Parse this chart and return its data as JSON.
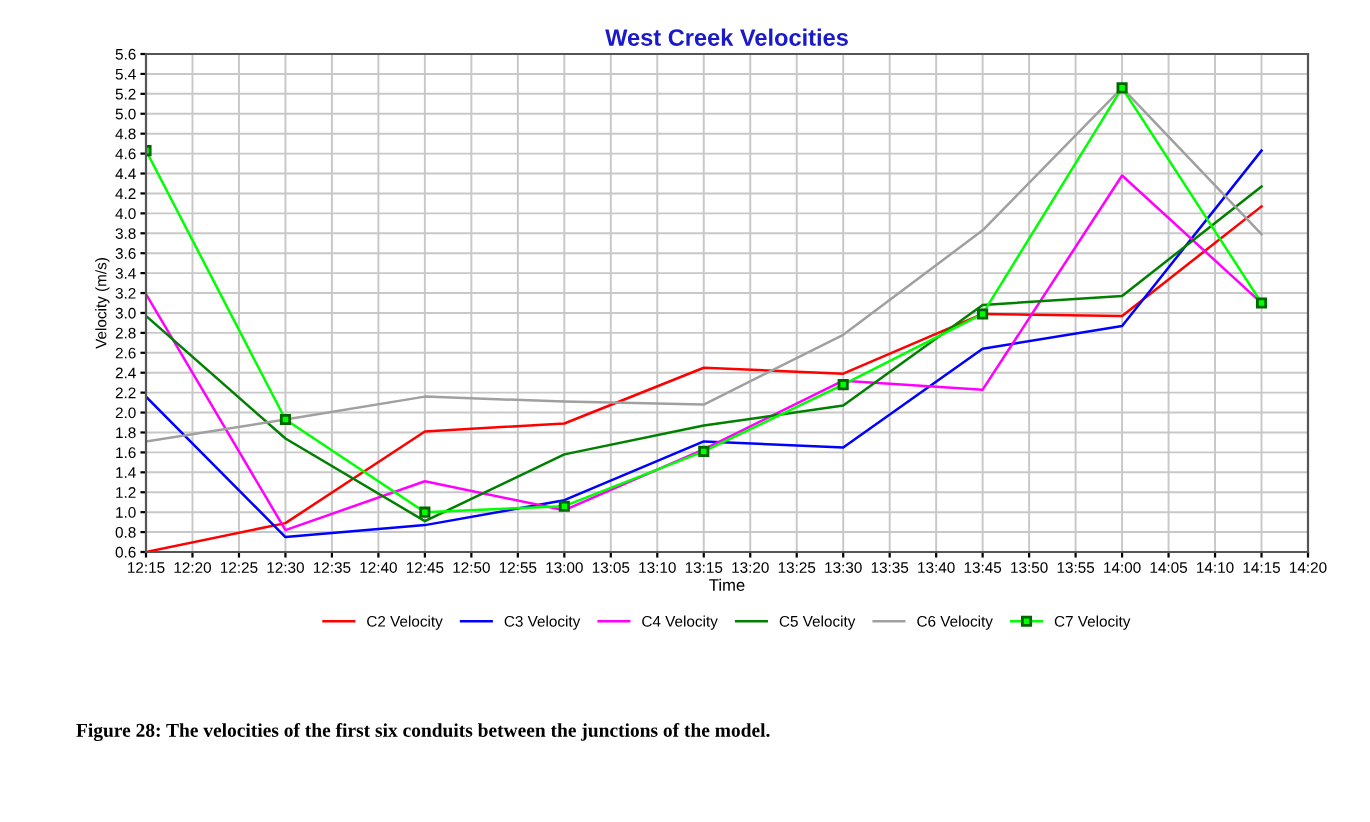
{
  "chart_data": {
    "type": "line",
    "title": "West Creek Velocities",
    "xlabel": "Time",
    "ylabel": "Velocity (m/s)",
    "x": [
      12.25,
      12.5,
      12.75,
      13.0,
      13.25,
      13.5,
      13.75,
      14.0,
      14.25
    ],
    "series": [
      {
        "name": "C2 Velocity",
        "color": "#ff0000",
        "values": [
          0.6,
          0.89,
          1.81,
          1.89,
          2.45,
          2.39,
          2.99,
          2.97,
          4.07
        ]
      },
      {
        "name": "C3 Velocity",
        "color": "#0000ff",
        "values": [
          2.16,
          0.75,
          0.87,
          1.12,
          1.71,
          1.65,
          2.64,
          2.87,
          4.63
        ]
      },
      {
        "name": "C4 Velocity",
        "color": "#ff00ff",
        "values": [
          3.19,
          0.82,
          1.31,
          1.02,
          1.63,
          2.32,
          2.23,
          4.38,
          3.1
        ]
      },
      {
        "name": "C5 Velocity",
        "color": "#008000",
        "values": [
          2.97,
          1.74,
          0.91,
          1.58,
          1.87,
          2.07,
          3.08,
          3.17,
          4.27
        ]
      },
      {
        "name": "C6 Velocity",
        "color": "#a0a0a0",
        "values": [
          1.71,
          1.93,
          2.16,
          2.11,
          2.08,
          2.78,
          3.83,
          5.26,
          3.79
        ]
      },
      {
        "name": "C7 Velocity",
        "color": "#00ff00",
        "marker": "square",
        "values": [
          4.63,
          1.93,
          1.0,
          1.06,
          1.61,
          2.28,
          2.99,
          5.26,
          3.1
        ]
      }
    ],
    "xlim": [
      12.25,
      14.333333
    ],
    "xticks": [
      {
        "value": 12.25,
        "label": "12:15"
      },
      {
        "value": 12.333333,
        "label": "12:20"
      },
      {
        "value": 12.416667,
        "label": "12:25"
      },
      {
        "value": 12.5,
        "label": "12:30"
      },
      {
        "value": 12.583333,
        "label": "12:35"
      },
      {
        "value": 12.666667,
        "label": "12:40"
      },
      {
        "value": 12.75,
        "label": "12:45"
      },
      {
        "value": 12.833333,
        "label": "12:50"
      },
      {
        "value": 12.916667,
        "label": "12:55"
      },
      {
        "value": 13.0,
        "label": "13:00"
      },
      {
        "value": 13.083333,
        "label": "13:05"
      },
      {
        "value": 13.166667,
        "label": "13:10"
      },
      {
        "value": 13.25,
        "label": "13:15"
      },
      {
        "value": 13.333333,
        "label": "13:20"
      },
      {
        "value": 13.416667,
        "label": "13:25"
      },
      {
        "value": 13.5,
        "label": "13:30"
      },
      {
        "value": 13.583333,
        "label": "13:35"
      },
      {
        "value": 13.666667,
        "label": "13:40"
      },
      {
        "value": 13.75,
        "label": "13:45"
      },
      {
        "value": 13.833333,
        "label": "13:50"
      },
      {
        "value": 13.916667,
        "label": "13:55"
      },
      {
        "value": 14.0,
        "label": "14:00"
      },
      {
        "value": 14.083333,
        "label": "14:05"
      },
      {
        "value": 14.166667,
        "label": "14:10"
      },
      {
        "value": 14.25,
        "label": "14:15"
      },
      {
        "value": 14.333333,
        "label": "14:20"
      }
    ],
    "ylim": [
      0.6,
      5.6
    ],
    "yticks": [
      {
        "value": 0.6,
        "label": "0.6"
      },
      {
        "value": 0.8,
        "label": "0.8"
      },
      {
        "value": 1.0,
        "label": "1.0"
      },
      {
        "value": 1.2,
        "label": "1.2"
      },
      {
        "value": 1.4,
        "label": "1.4"
      },
      {
        "value": 1.6,
        "label": "1.6"
      },
      {
        "value": 1.8,
        "label": "1.8"
      },
      {
        "value": 2.0,
        "label": "2.0"
      },
      {
        "value": 2.2,
        "label": "2.2"
      },
      {
        "value": 2.4,
        "label": "2.4"
      },
      {
        "value": 2.6,
        "label": "2.6"
      },
      {
        "value": 2.8,
        "label": "2.8"
      },
      {
        "value": 3.0,
        "label": "3.0"
      },
      {
        "value": 3.2,
        "label": "3.2"
      },
      {
        "value": 3.4,
        "label": "3.4"
      },
      {
        "value": 3.6,
        "label": "3.6"
      },
      {
        "value": 3.8,
        "label": "3.8"
      },
      {
        "value": 4.0,
        "label": "4.0"
      },
      {
        "value": 4.2,
        "label": "4.2"
      },
      {
        "value": 4.4,
        "label": "4.4"
      },
      {
        "value": 4.6,
        "label": "4.6"
      },
      {
        "value": 4.8,
        "label": "4.8"
      },
      {
        "value": 5.0,
        "label": "5.0"
      },
      {
        "value": 5.2,
        "label": "5.2"
      },
      {
        "value": 5.4,
        "label": "5.4"
      },
      {
        "value": 5.6,
        "label": "5.6"
      }
    ],
    "grid": true,
    "legend": "bottom",
    "line_style": "solid",
    "annotations": [
      "Figure 28: The velocities of the first six conduits between the junctions of the model."
    ]
  }
}
